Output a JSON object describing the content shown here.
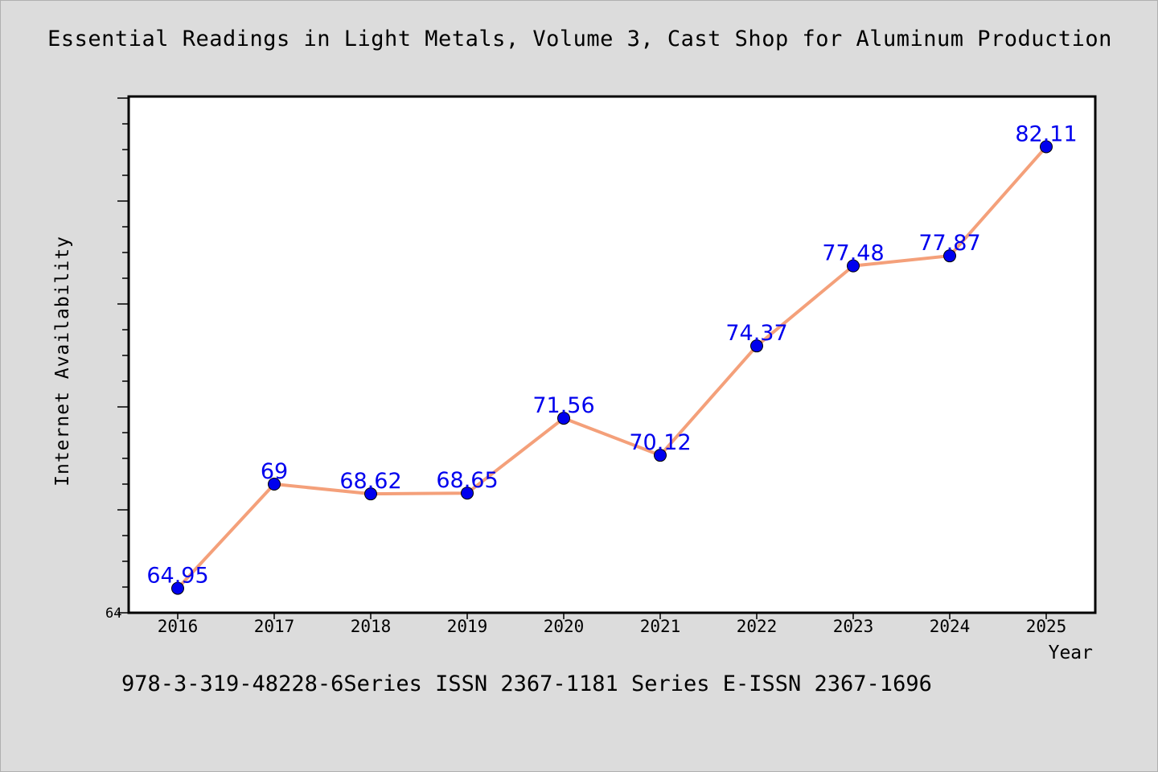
{
  "chart_data": {
    "type": "line",
    "title": "Essential Readings in Light Metals, Volume 3, Cast Shop for Aluminum Production",
    "xlabel": "Year",
    "ylabel": "Internet Availability",
    "categories": [
      "2016",
      "2017",
      "2018",
      "2019",
      "2020",
      "2021",
      "2022",
      "2023",
      "2024",
      "2025"
    ],
    "series": [
      {
        "values": [
          64.95,
          69,
          68.62,
          68.65,
          71.56,
          70.12,
          74.37,
          77.48,
          77.87,
          82.11
        ],
        "data_labels": [
          "64.95",
          "69",
          "68.62",
          "68.65",
          "71.56",
          "70.12",
          "74.37",
          "77.48",
          "77.87",
          "82.11"
        ],
        "line_color": "#f4a07a",
        "marker_color": "#0000ee"
      }
    ],
    "ylim": [
      64,
      84
    ],
    "y_tick_labels": [
      "64"
    ],
    "grid": false,
    "label_color": "#0000ee"
  },
  "footnote": "978-3-319-48228-6Series ISSN 2367-1181 Series E-ISSN 2367-1696"
}
